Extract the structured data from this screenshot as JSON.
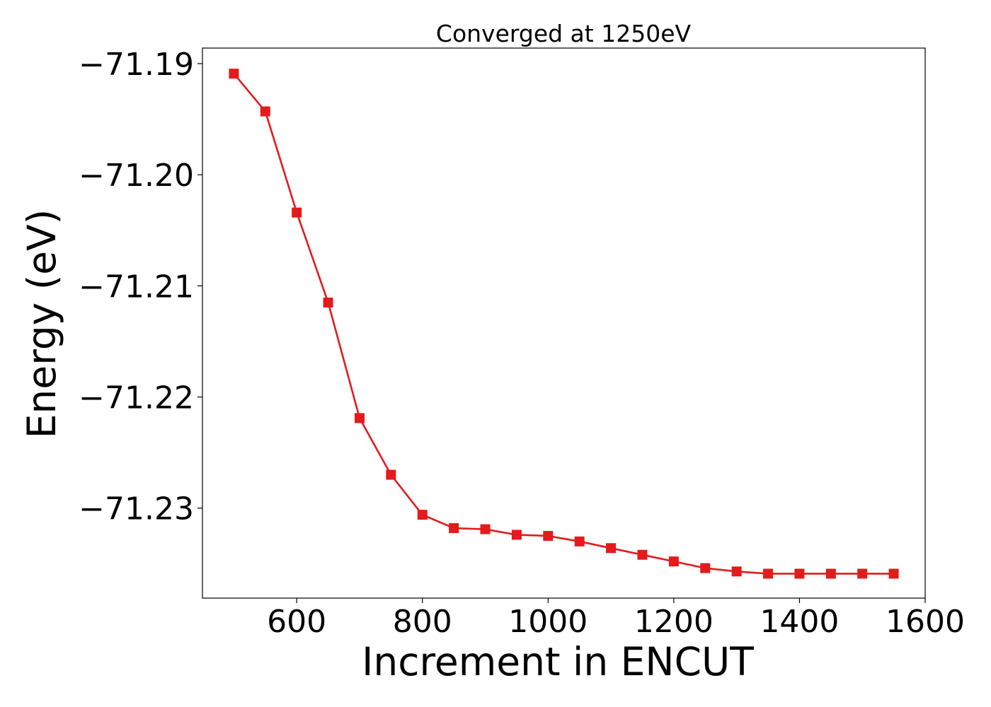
{
  "chart_data": {
    "type": "line",
    "title": "Converged at 1250eV",
    "xlabel": "Increment in ENCUT",
    "ylabel": "Energy (eV)",
    "xlim": [
      450,
      1600
    ],
    "ylim": [
      -71.2381,
      -71.1886
    ],
    "xticks": [
      600,
      800,
      1000,
      1200,
      1400,
      1600
    ],
    "xtick_labels": [
      "600",
      "800",
      "1000",
      "1200",
      "1400",
      "1600"
    ],
    "yticks": [
      -71.19,
      -71.2,
      -71.21,
      -71.22,
      -71.23
    ],
    "ytick_labels": [
      "−71.19",
      "−71.20",
      "−71.21",
      "−71.22",
      "−71.23"
    ],
    "grid": false,
    "series": [
      {
        "color": "#e41a1c",
        "marker": "square",
        "x": [
          500,
          550,
          600,
          650,
          700,
          750,
          800,
          850,
          900,
          950,
          1000,
          1050,
          1100,
          1150,
          1200,
          1250,
          1300,
          1350,
          1400,
          1450,
          1500,
          1550
        ],
        "y": [
          -71.1909,
          -71.1943,
          -71.2034,
          -71.2115,
          -71.2219,
          -71.227,
          -71.2306,
          -71.2318,
          -71.2319,
          -71.2324,
          -71.2325,
          -71.233,
          -71.2336,
          -71.2342,
          -71.2348,
          -71.2354,
          -71.2357,
          -71.2359,
          -71.2359,
          -71.2359,
          -71.2359,
          -71.2359
        ]
      }
    ]
  }
}
